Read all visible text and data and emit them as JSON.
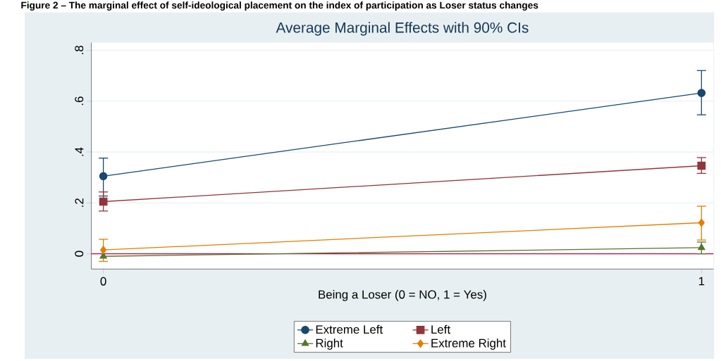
{
  "chart_data": {
    "type": "line",
    "title": "Average Marginal Effects with 90% CIs",
    "xlabel": "Being a Loser (0 = NO, 1 = Yes)",
    "annotations": [
      "Figure 2 – The marginal effect of self-ideological placement on the index of participation as Loser status changes"
    ],
    "x": [
      0,
      1
    ],
    "xlim": [
      -0.02,
      1.02
    ],
    "xticks": [
      0,
      1
    ],
    "ylim": [
      -0.06,
      0.83
    ],
    "yticks": [
      {
        "value": 0,
        "label": "0"
      },
      {
        "value": 0.2,
        "label": ".2"
      },
      {
        "value": 0.4,
        "label": ".4"
      },
      {
        "value": 0.6,
        "label": ".6"
      },
      {
        "value": 0.8,
        "label": ".8"
      }
    ],
    "grid": "y",
    "legend": "bottom",
    "line_style": "solid",
    "ref_lines": [
      {
        "axis": "y",
        "value": 0,
        "color": "#c10534"
      }
    ],
    "series": [
      {
        "name": "Extreme Left",
        "color": "#1a476f",
        "marker": "circle",
        "values": [
          0.305,
          0.632
        ],
        "errors": [
          [
            0.227,
            0.376
          ],
          [
            0.546,
            0.72
          ]
        ]
      },
      {
        "name": "Left",
        "color": "#90353b",
        "marker": "square",
        "values": [
          0.205,
          0.346
        ],
        "errors": [
          [
            0.168,
            0.243
          ],
          [
            0.316,
            0.378
          ]
        ]
      },
      {
        "name": "Right",
        "color": "#55752f",
        "marker": "triangle",
        "values": [
          -0.01,
          0.024
        ],
        "errors": [
          null,
          [
            0.0,
            0.046
          ]
        ]
      },
      {
        "name": "Extreme Right",
        "color": "#e37e00",
        "marker": "diamond",
        "values": [
          0.015,
          0.122
        ],
        "errors": [
          [
            -0.03,
            0.057
          ],
          [
            0.054,
            0.187
          ]
        ]
      }
    ]
  }
}
